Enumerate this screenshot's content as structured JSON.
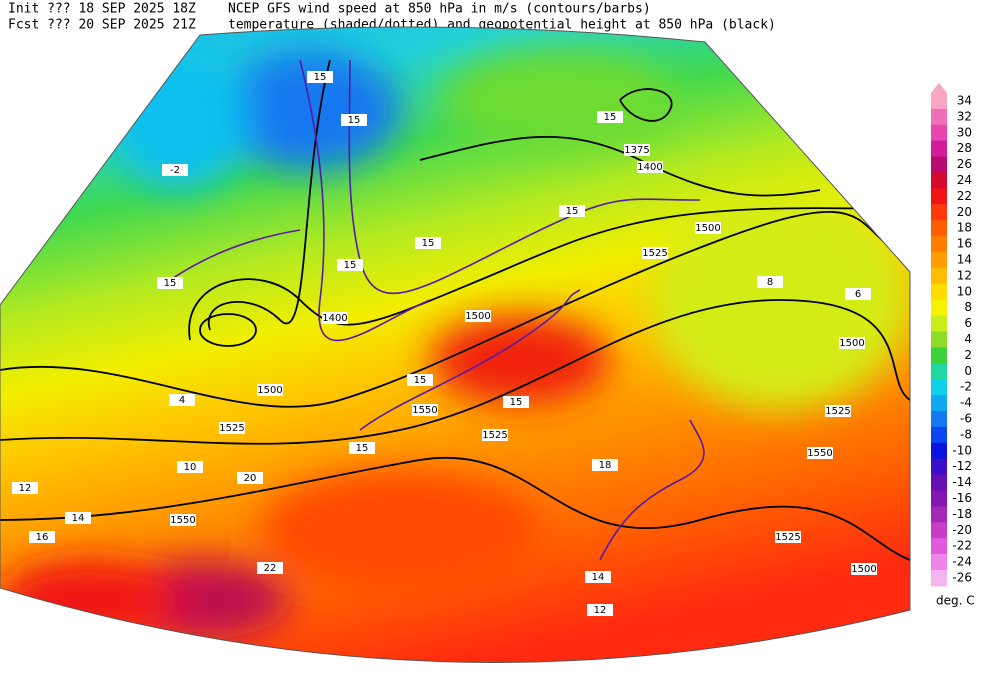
{
  "header": {
    "init_label": "Init  ??? 18 SEP 2025 18Z",
    "fcst_label": "Fcst ??? 20 SEP 2025 21Z",
    "title_line1": "NCEP GFS wind speed at 850 hPa in m/s (contours/barbs)",
    "title_line2": "temperature (shaded/dotted) and geopotential height at 850 hPa (black)"
  },
  "map": {
    "height_labels": [
      1500,
      1525,
      1550,
      1500,
      1525,
      1550,
      1525,
      1500,
      1500,
      1525,
      1550,
      1525,
      1500,
      1375,
      1400,
      1400
    ],
    "wind_labels": [
      15,
      15,
      15,
      15,
      15,
      15,
      15,
      15,
      15,
      15
    ],
    "temperature_labels": [
      -2,
      4,
      10,
      12,
      14,
      16,
      20,
      22,
      18,
      12,
      8,
      6,
      14
    ]
  },
  "colorbar": {
    "levels": [
      34,
      32,
      30,
      28,
      26,
      24,
      22,
      20,
      18,
      16,
      14,
      12,
      10,
      8,
      6,
      4,
      2,
      0,
      -2,
      -4,
      -6,
      -8,
      -10,
      -12,
      -14,
      -16,
      -18,
      -20,
      -22,
      -24,
      -26
    ],
    "colors": [
      "#f7a6c4",
      "#f070b8",
      "#e845b0",
      "#d41c9a",
      "#b80c6e",
      "#d60a2a",
      "#f01414",
      "#ff3a0a",
      "#ff5e00",
      "#ff7e00",
      "#ff9c00",
      "#ffbc00",
      "#ffdc00",
      "#f4f400",
      "#c8ec1c",
      "#8cdc28",
      "#3cd23c",
      "#20d8a0",
      "#10d0e8",
      "#10a8f0",
      "#1478f0",
      "#0a46f0",
      "#0a14e0",
      "#3c10c8",
      "#6410b4",
      "#8414b4",
      "#a428b8",
      "#c83cc8",
      "#e05ade",
      "#ee84ea",
      "#f4b4f0"
    ],
    "unit": "deg. C"
  }
}
